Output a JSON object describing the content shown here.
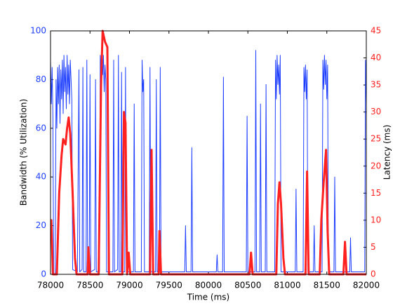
{
  "chart_data": {
    "type": "line",
    "xlabel": "Time (ms)",
    "ylabel": "Bandwidth (% Utilization)",
    "y2label": "Latency (ms)",
    "xlim": [
      78000,
      82000
    ],
    "xticks": [
      78000,
      78500,
      79000,
      79500,
      80000,
      80500,
      81000,
      81500,
      82000
    ],
    "ylim": [
      0,
      100
    ],
    "yticks": [
      0,
      20,
      40,
      60,
      80,
      100
    ],
    "y2lim": [
      0,
      45
    ],
    "y2ticks": [
      0,
      5,
      10,
      15,
      20,
      25,
      30,
      35,
      40,
      45
    ],
    "series": [
      {
        "name": "Bandwidth",
        "color": "#1f3fff",
        "x": [
          78000,
          78010,
          78020,
          78030,
          78040,
          78060,
          78070,
          78080,
          78090,
          78100,
          78110,
          78120,
          78130,
          78140,
          78150,
          78160,
          78170,
          78180,
          78190,
          78200,
          78210,
          78220,
          78230,
          78240,
          78250,
          78260,
          78270,
          78280,
          78340,
          78360,
          78370,
          78400,
          78410,
          78420,
          78450,
          78460,
          78470,
          78490,
          78500,
          78510,
          78560,
          78570,
          78580,
          78620,
          78630,
          78640,
          78650,
          78660,
          78670,
          78680,
          78690,
          78700,
          78710,
          78790,
          78800,
          78810,
          78850,
          78860,
          78870,
          78890,
          78900,
          78910,
          78940,
          78950,
          78960,
          79050,
          79060,
          79070,
          79150,
          79160,
          79170,
          79180,
          79190,
          79250,
          79260,
          79270,
          79330,
          79340,
          79350,
          79380,
          79390,
          79400,
          79700,
          79710,
          79720,
          79780,
          79790,
          79800,
          80100,
          80110,
          80120,
          80180,
          80190,
          80200,
          80480,
          80490,
          80500,
          80590,
          80600,
          80610,
          80650,
          80660,
          80670,
          80720,
          80730,
          80740,
          80840,
          80850,
          80860,
          80870,
          80880,
          80890,
          80900,
          80910,
          80920,
          81100,
          81110,
          81120,
          81200,
          81210,
          81220,
          81230,
          81240,
          81250,
          81260,
          81330,
          81340,
          81350,
          81440,
          81450,
          81460,
          81470,
          81480,
          81490,
          81500,
          81510,
          81520,
          81590,
          81600,
          81610,
          81790,
          81800,
          81810,
          81980,
          81990,
          82000
        ],
        "values": [
          88,
          70,
          85,
          65,
          0,
          0,
          80,
          60,
          85,
          70,
          86,
          62,
          84,
          72,
          88,
          66,
          90,
          75,
          85,
          68,
          90,
          74,
          86,
          70,
          88,
          80,
          72,
          2,
          1,
          84,
          1,
          2,
          85,
          1,
          1,
          88,
          1,
          1,
          82,
          1,
          2,
          80,
          1,
          1,
          90,
          78,
          88,
          82,
          90,
          75,
          86,
          80,
          1,
          1,
          88,
          1,
          2,
          90,
          1,
          1,
          83,
          1,
          1,
          85,
          1,
          1,
          70,
          1,
          1,
          88,
          75,
          80,
          1,
          1,
          85,
          1,
          1,
          80,
          1,
          1,
          85,
          1,
          1,
          20,
          1,
          1,
          52,
          1,
          1,
          8,
          1,
          1,
          81,
          1,
          1,
          65,
          1,
          1,
          92,
          1,
          1,
          70,
          1,
          1,
          78,
          1,
          1,
          88,
          72,
          90,
          78,
          86,
          74,
          90,
          1,
          1,
          35,
          1,
          1,
          85,
          75,
          86,
          72,
          84,
          1,
          1,
          20,
          1,
          1,
          88,
          76,
          90,
          78,
          88,
          72,
          86,
          1,
          1,
          40,
          1,
          1,
          15,
          1,
          1,
          88,
          70
        ]
      },
      {
        "name": "Latency",
        "color": "#ff2020",
        "axis": "y2",
        "x": [
          78000,
          78010,
          78030,
          78080,
          78110,
          78140,
          78160,
          78190,
          78210,
          78230,
          78250,
          78280,
          78310,
          78330,
          78470,
          78480,
          78500,
          78610,
          78640,
          78660,
          78690,
          78720,
          78740,
          78910,
          78930,
          78950,
          78970,
          78990,
          79010,
          79260,
          79280,
          79300,
          79370,
          79380,
          79400,
          80520,
          80540,
          80560,
          80860,
          80880,
          80900,
          80920,
          80950,
          80970,
          81230,
          81250,
          81270,
          81410,
          81430,
          81460,
          81490,
          81510,
          81530,
          81710,
          81730,
          81750,
          82000
        ],
        "values": [
          10,
          10,
          0,
          0,
          15,
          22,
          25,
          24,
          27,
          29,
          26,
          15,
          3,
          0,
          0,
          5,
          0,
          0,
          35,
          45,
          43,
          42,
          0,
          0,
          30,
          28,
          0,
          4,
          0,
          0,
          23,
          0,
          0,
          8,
          0,
          0,
          4,
          0,
          0,
          13,
          17,
          13,
          3,
          0,
          0,
          19,
          0,
          0,
          10,
          17,
          23,
          8,
          0,
          0,
          6,
          0,
          0
        ]
      }
    ]
  }
}
